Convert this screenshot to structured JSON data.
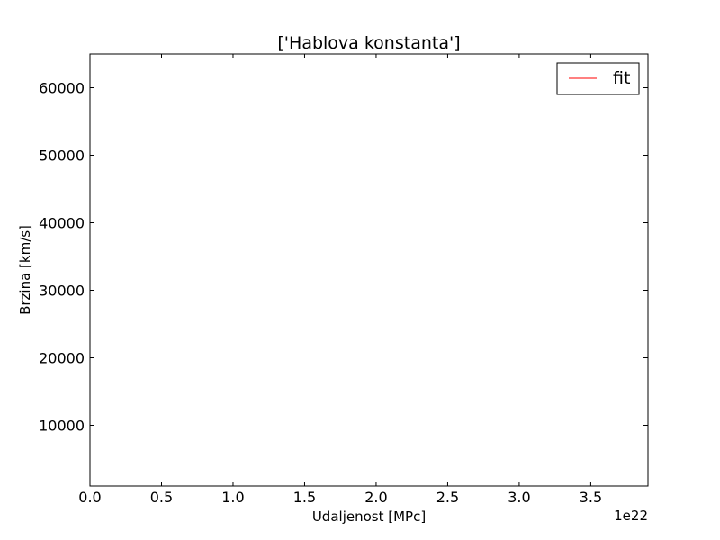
{
  "chart_data": {
    "type": "line",
    "title": "['Hablova konstanta']",
    "xlabel": "Udaljenost [MPc]",
    "ylabel": "Brzina [km/s]",
    "x_offset_text": "1e22",
    "xlim": [
      0.0,
      3.9
    ],
    "ylim": [
      1000,
      65000
    ],
    "x_ticks": [
      0.0,
      0.5,
      1.0,
      1.5,
      2.0,
      2.5,
      3.0,
      3.5
    ],
    "x_tick_labels": [
      "0.0",
      "0.5",
      "1.0",
      "1.5",
      "2.0",
      "2.5",
      "3.0",
      "3.5"
    ],
    "y_ticks": [
      10000,
      20000,
      30000,
      40000,
      50000,
      60000
    ],
    "y_tick_labels": [
      "10000",
      "20000",
      "30000",
      "40000",
      "50000",
      "60000"
    ],
    "grid": false,
    "legend_position": "top-right",
    "series": [
      {
        "name": "fit",
        "color": "#ff0000",
        "x": [],
        "y": []
      }
    ]
  }
}
